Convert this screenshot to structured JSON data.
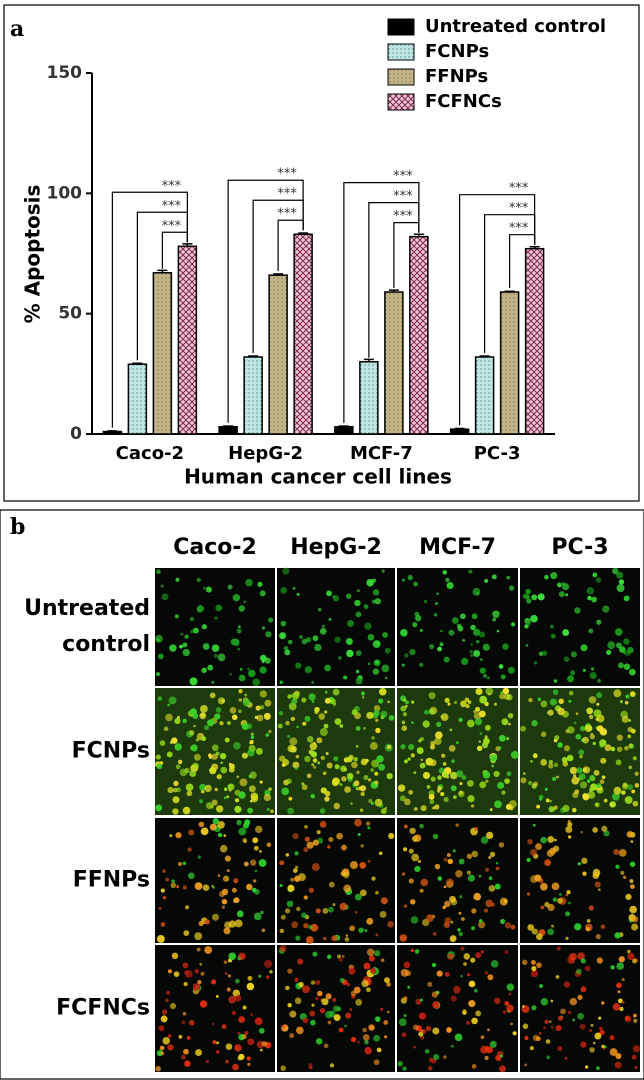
{
  "chart_data": {
    "type": "bar",
    "panel_label": "a",
    "ylabel": "% Apoptosis",
    "xlabel": "Human cancer cell lines",
    "categories": [
      "Caco-2",
      "HepG-2",
      "MCF-7",
      "PC-3"
    ],
    "series": [
      {
        "name": "Untreated control",
        "color": "#000000",
        "values": [
          1,
          3,
          3,
          2
        ],
        "errors": [
          0.3,
          0.3,
          0.3,
          0.3
        ]
      },
      {
        "name": "FCNPs",
        "color": "#bfe6e2",
        "values": [
          29,
          32,
          30,
          32
        ],
        "errors": [
          0.4,
          0.4,
          1,
          0.4
        ]
      },
      {
        "name": "FFNPs",
        "color": "#c2b487",
        "values": [
          67,
          66,
          59,
          59
        ],
        "errors": [
          1,
          0.5,
          0.8,
          0.3
        ]
      },
      {
        "name": "FCFNCs",
        "color": "#f3c6d8",
        "values": [
          78,
          83,
          82,
          77
        ],
        "errors": [
          1,
          0.5,
          1,
          0.8
        ]
      }
    ],
    "ylim": [
      0,
      150
    ],
    "yticks": [
      0,
      50,
      100,
      150
    ],
    "legend": "top-right",
    "annotations": [
      {
        "category": 0,
        "from": 0,
        "to": 3,
        "text": "***"
      },
      {
        "category": 0,
        "from": 1,
        "to": 3,
        "text": "***"
      },
      {
        "category": 0,
        "from": 2,
        "to": 3,
        "text": "***"
      },
      {
        "category": 1,
        "from": 0,
        "to": 3,
        "text": "***"
      },
      {
        "category": 1,
        "from": 1,
        "to": 3,
        "text": "***"
      },
      {
        "category": 1,
        "from": 2,
        "to": 3,
        "text": "***"
      },
      {
        "category": 2,
        "from": 0,
        "to": 3,
        "text": "***"
      },
      {
        "category": 2,
        "from": 1,
        "to": 3,
        "text": "***"
      },
      {
        "category": 2,
        "from": 2,
        "to": 3,
        "text": "***"
      },
      {
        "category": 3,
        "from": 0,
        "to": 3,
        "text": "***"
      },
      {
        "category": 3,
        "from": 1,
        "to": 3,
        "text": "***"
      },
      {
        "category": 3,
        "from": 2,
        "to": 3,
        "text": "***"
      }
    ]
  },
  "panel_b": {
    "label": "b",
    "columns": [
      "Caco-2",
      "HepG-2",
      "MCF-7",
      "PC-3"
    ],
    "rows": [
      [
        "Untreated",
        "control"
      ],
      [
        "FCNPs"
      ],
      [
        "FFNPs"
      ],
      [
        "FCFNCs"
      ]
    ]
  }
}
